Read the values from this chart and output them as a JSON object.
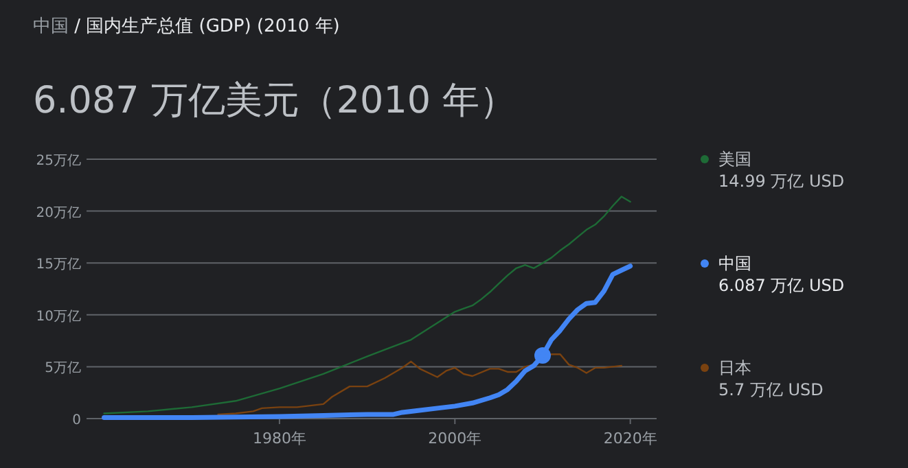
{
  "chart_data": {
    "type": "line",
    "title": "中国 / 国内生产总值 (GDP) (2010 年)",
    "annotations": [
      "6.087 万亿美元（2010 年）",
      "14.99 万亿 USD",
      "6.087 万亿 USD",
      "5.7 万亿 USD"
    ],
    "xlim": [
      1958,
      2023
    ],
    "xticks": [
      {
        "value": 1980,
        "label": "1980年"
      },
      {
        "value": 2000,
        "label": "2000年"
      },
      {
        "value": 2020,
        "label": "2020年"
      }
    ],
    "ylim": [
      0,
      25
    ],
    "yticks": [
      0,
      {
        "value": 5,
        "label": "5万亿"
      },
      {
        "value": 10,
        "label": "10万亿"
      },
      {
        "value": 15,
        "label": "15万亿"
      },
      {
        "value": 20,
        "label": "20万亿"
      },
      {
        "value": 25,
        "label": "25万亿"
      }
    ],
    "grid": "y",
    "legend": "right",
    "series": [
      {
        "name": "美国",
        "color": "#1e6b36",
        "x": [
          1960,
          1965,
          1970,
          1975,
          1980,
          1985,
          1990,
          1995,
          2000,
          2001,
          2002,
          2003,
          2004,
          2005,
          2006,
          2007,
          2008,
          2009,
          2010,
          2011,
          2012,
          2013,
          2014,
          2015,
          2016,
          2017,
          2018,
          2019,
          2020
        ],
        "values": [
          0.5,
          0.7,
          1.1,
          1.7,
          2.9,
          4.3,
          6.0,
          7.6,
          10.3,
          10.6,
          10.9,
          11.5,
          12.2,
          13.0,
          13.8,
          14.5,
          14.8,
          14.5,
          14.99,
          15.5,
          16.2,
          16.8,
          17.5,
          18.2,
          18.7,
          19.5,
          20.5,
          21.4,
          20.9
        ]
      },
      {
        "name": "中国",
        "color": "#4285f4",
        "x": [
          1960,
          1970,
          1980,
          1985,
          1990,
          1993,
          1994,
          1995,
          1998,
          2000,
          2002,
          2004,
          2005,
          2006,
          2007,
          2008,
          2009,
          2010,
          2011,
          2012,
          2013,
          2014,
          2015,
          2016,
          2017,
          2018,
          2019,
          2020
        ],
        "values": [
          0.1,
          0.1,
          0.2,
          0.3,
          0.4,
          0.4,
          0.6,
          0.7,
          1.0,
          1.2,
          1.5,
          2.0,
          2.3,
          2.8,
          3.6,
          4.6,
          5.1,
          6.087,
          7.6,
          8.5,
          9.6,
          10.5,
          11.1,
          11.2,
          12.3,
          13.9,
          14.3,
          14.7
        ]
      },
      {
        "name": "日本",
        "color": "#7a4210",
        "x": [
          1973,
          1975,
          1977,
          1978,
          1980,
          1982,
          1984,
          1985,
          1986,
          1988,
          1990,
          1992,
          1994,
          1995,
          1996,
          1998,
          1999,
          2000,
          2001,
          2002,
          2004,
          2005,
          2006,
          2007,
          2008,
          2009,
          2010,
          2011,
          2012,
          2013,
          2014,
          2015,
          2016,
          2017,
          2018,
          2019
        ],
        "values": [
          0.4,
          0.5,
          0.7,
          1.0,
          1.1,
          1.1,
          1.3,
          1.4,
          2.1,
          3.1,
          3.1,
          3.9,
          4.9,
          5.5,
          4.8,
          4.0,
          4.6,
          4.9,
          4.3,
          4.1,
          4.8,
          4.8,
          4.5,
          4.5,
          5.0,
          5.2,
          5.7,
          6.2,
          6.2,
          5.2,
          4.9,
          4.4,
          4.9,
          4.9,
          5.0,
          5.1
        ]
      },
      {
        "type": "scatter",
        "color": "#4285f4",
        "x": [
          2010
        ],
        "values": [
          6.087
        ]
      }
    ]
  }
}
